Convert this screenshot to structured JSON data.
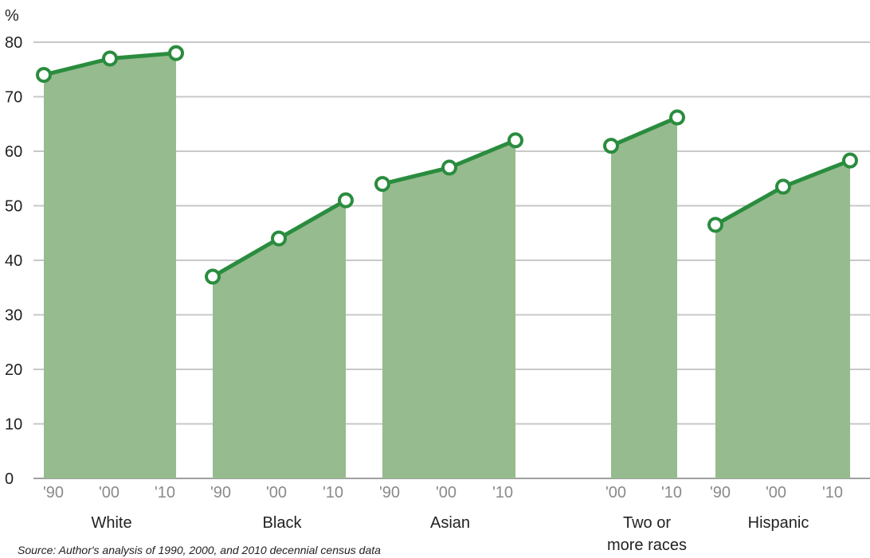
{
  "chart_data": {
    "type": "area",
    "unit_label": "%",
    "ylim": [
      0,
      80
    ],
    "yticks": [
      0,
      10,
      20,
      30,
      40,
      50,
      60,
      70,
      80
    ],
    "grid": true,
    "groups": [
      {
        "name": "White",
        "x": [
          "'90",
          "'00",
          "'10"
        ],
        "values": [
          74,
          77,
          78
        ]
      },
      {
        "name": "Black",
        "x": [
          "'90",
          "'00",
          "'10"
        ],
        "values": [
          37,
          44,
          51
        ]
      },
      {
        "name": "Asian",
        "x": [
          "'90",
          "'00",
          "'10"
        ],
        "values": [
          54,
          57,
          62
        ]
      },
      {
        "name": "Two or more races",
        "x": [
          "'00",
          "'10"
        ],
        "values": [
          61,
          66.2
        ]
      },
      {
        "name": "Hispanic",
        "x": [
          "'90",
          "'00",
          "'10"
        ],
        "values": [
          46.5,
          53.5,
          58.3
        ]
      }
    ],
    "colors": {
      "fill": "#96bb8e",
      "line": "#2a8c3e",
      "marker_fill": "#ffffff",
      "grid": "#c8c8c8",
      "text": "#222222",
      "tick": "#8a8a8a"
    }
  },
  "source": "Source: Author's analysis of 1990, 2000, and 2010 decennial census data"
}
